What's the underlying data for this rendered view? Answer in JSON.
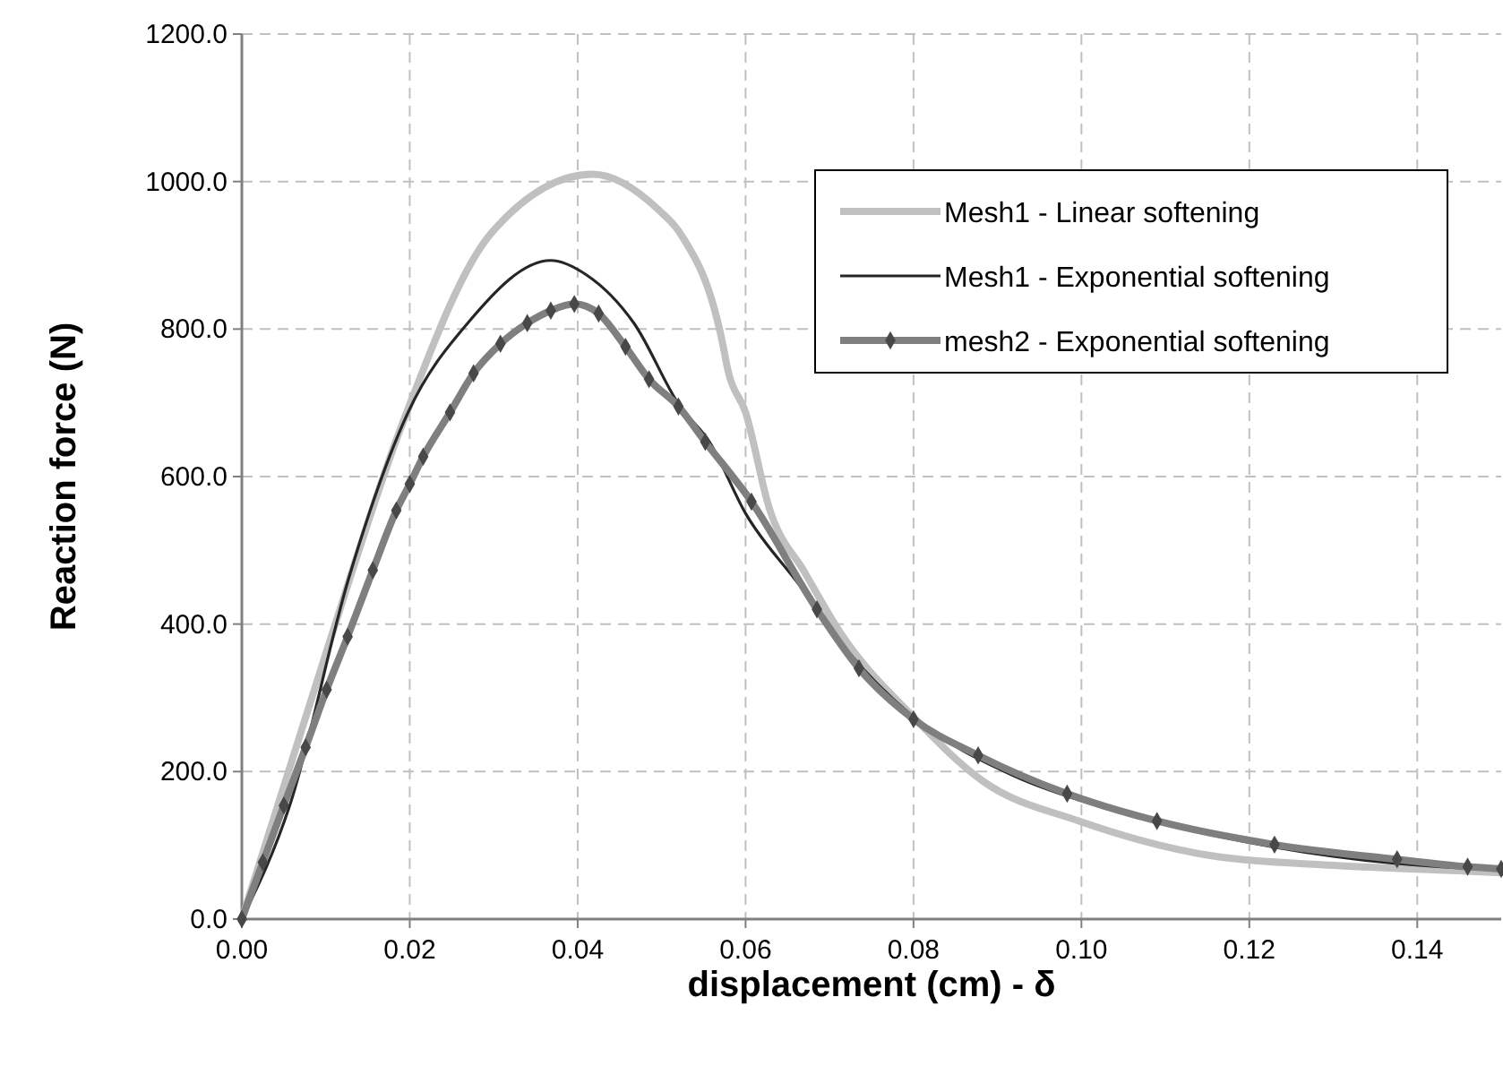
{
  "chart_data": {
    "type": "line",
    "xlabel": "displacement (cm) - δ",
    "ylabel": "Reaction force (N)",
    "xlim": [
      0,
      0.15
    ],
    "ylim": [
      0,
      1200
    ],
    "xticks": [
      {
        "value": 0,
        "label": "0.00"
      },
      {
        "value": 0.02,
        "label": "0.02"
      },
      {
        "value": 0.04,
        "label": "0.04"
      },
      {
        "value": 0.06,
        "label": "0.06"
      },
      {
        "value": 0.08,
        "label": "0.08"
      },
      {
        "value": 0.1,
        "label": "0.10"
      },
      {
        "value": 0.12,
        "label": "0.12"
      },
      {
        "value": 0.14,
        "label": "0.14"
      }
    ],
    "yticks": [
      {
        "value": 0,
        "label": "0.0"
      },
      {
        "value": 200,
        "label": "200.0"
      },
      {
        "value": 400,
        "label": "400.0"
      },
      {
        "value": 600,
        "label": "600.0"
      },
      {
        "value": 800,
        "label": "800.0"
      },
      {
        "value": 1000,
        "label": "1000.0"
      },
      {
        "value": 1200,
        "label": "1200.0"
      }
    ],
    "grid": true,
    "legend": "top right",
    "line_style": "solid",
    "series": [
      {
        "name": "Mesh1 - Linear softening",
        "color": "#c0c0c0",
        "marker": "none",
        "x": [
          0,
          0.01,
          0.0191,
          0.0297,
          0.0418,
          0.0496,
          0.0522,
          0.0572,
          0.0579,
          0.06,
          0.0628,
          0.0671,
          0.0713,
          0.0799,
          0.0884,
          0.0997,
          0.116,
          0.13,
          0.1458,
          0.15
        ],
        "values": [
          0,
          360,
          671,
          930,
          1010,
          962,
          930,
          784,
          744,
          687,
          558,
          469,
          388,
          275,
          186,
          133,
          85,
          73,
          65,
          63
        ]
      },
      {
        "name": "Mesh1 - Exponential softening",
        "color": "#262626",
        "marker": "none",
        "x": [
          0,
          0.0057,
          0.0127,
          0.0198,
          0.0269,
          0.0368,
          0.0411,
          0.0467,
          0.0522,
          0.0557,
          0.06,
          0.0664,
          0.0721,
          0.0799,
          0.092,
          0.1018,
          0.116,
          0.13,
          0.1458,
          0.15
        ],
        "values": [
          0,
          154,
          461,
          687,
          808,
          893,
          873,
          808,
          695,
          647,
          550,
          453,
          364,
          275,
          194,
          154,
          113,
          85,
          69,
          67
        ]
      },
      {
        "name": "mesh2 - Exponential softening",
        "color": "#7f7f7f",
        "marker": "diamond",
        "x": [
          0,
          0.0025,
          0.005,
          0.0076,
          0.0101,
          0.0126,
          0.0156,
          0.0184,
          0.02,
          0.0216,
          0.0248,
          0.0276,
          0.0308,
          0.034,
          0.0368,
          0.0396,
          0.0425,
          0.0457,
          0.0485,
          0.052,
          0.0552,
          0.0607,
          0.0685,
          0.0735,
          0.08,
          0.0877,
          0.0983,
          0.109,
          0.123,
          0.1376,
          0.146,
          0.15
        ],
        "values": [
          0,
          77,
          154,
          233,
          311,
          383,
          473,
          554,
          590,
          627,
          687,
          740,
          780,
          808,
          825,
          834,
          821,
          776,
          732,
          695,
          647,
          566,
          420,
          340,
          271,
          222,
          170,
          133,
          101,
          81,
          71,
          68
        ]
      }
    ]
  }
}
